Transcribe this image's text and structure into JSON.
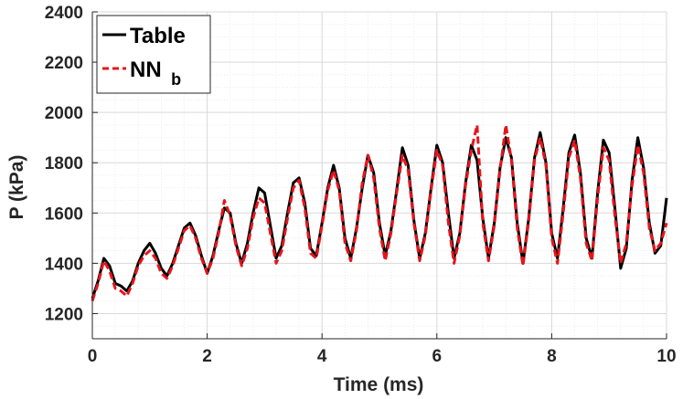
{
  "chart_data": {
    "type": "line",
    "title": "",
    "xlabel": "Time (ms)",
    "ylabel": "P (kPa)",
    "xlim": [
      0,
      10
    ],
    "ylim": [
      1100,
      2400
    ],
    "xticks": [
      0,
      2,
      4,
      6,
      8,
      10
    ],
    "yticks": [
      1200,
      1400,
      1600,
      1800,
      2000,
      2200,
      2400
    ],
    "xtick_labels": [
      "0",
      "2",
      "4",
      "6",
      "8",
      "10"
    ],
    "ytick_labels": [
      "1200",
      "1400",
      "1600",
      "1800",
      "2000",
      "2200",
      "2400"
    ],
    "grid": true,
    "minor_grid": true,
    "legend_position": "top-left",
    "legend": [
      {
        "name": "Table",
        "color": "#000000",
        "style": "solid"
      },
      {
        "name": "NN",
        "subscript": "b",
        "color": "#e8141c",
        "style": "dashed"
      }
    ],
    "series": [
      {
        "name": "Table",
        "color": "#000000",
        "x": [
          0.0,
          0.1,
          0.2,
          0.3,
          0.4,
          0.5,
          0.6,
          0.7,
          0.8,
          0.9,
          1.0,
          1.1,
          1.2,
          1.3,
          1.4,
          1.5,
          1.6,
          1.7,
          1.8,
          1.9,
          2.0,
          2.1,
          2.2,
          2.3,
          2.4,
          2.5,
          2.6,
          2.7,
          2.8,
          2.9,
          3.0,
          3.1,
          3.2,
          3.3,
          3.4,
          3.5,
          3.6,
          3.7,
          3.8,
          3.9,
          4.0,
          4.1,
          4.2,
          4.3,
          4.4,
          4.5,
          4.6,
          4.7,
          4.8,
          4.9,
          5.0,
          5.1,
          5.2,
          5.3,
          5.4,
          5.5,
          5.6,
          5.7,
          5.8,
          5.9,
          6.0,
          6.1,
          6.2,
          6.3,
          6.4,
          6.5,
          6.6,
          6.7,
          6.8,
          6.9,
          7.0,
          7.1,
          7.2,
          7.3,
          7.4,
          7.5,
          7.6,
          7.7,
          7.8,
          7.9,
          8.0,
          8.1,
          8.2,
          8.3,
          8.4,
          8.5,
          8.6,
          8.7,
          8.8,
          8.9,
          9.0,
          9.1,
          9.2,
          9.3,
          9.4,
          9.5,
          9.6,
          9.7,
          9.8,
          9.9,
          10.0
        ],
        "y": [
          1260,
          1330,
          1420,
          1390,
          1320,
          1310,
          1290,
          1330,
          1400,
          1450,
          1480,
          1440,
          1380,
          1350,
          1400,
          1470,
          1540,
          1560,
          1510,
          1430,
          1360,
          1430,
          1530,
          1620,
          1600,
          1480,
          1400,
          1480,
          1600,
          1700,
          1680,
          1550,
          1420,
          1470,
          1600,
          1720,
          1740,
          1640,
          1460,
          1430,
          1560,
          1700,
          1790,
          1700,
          1500,
          1420,
          1540,
          1700,
          1830,
          1760,
          1560,
          1430,
          1530,
          1690,
          1860,
          1790,
          1570,
          1420,
          1520,
          1700,
          1870,
          1800,
          1600,
          1420,
          1520,
          1720,
          1870,
          1810,
          1580,
          1420,
          1560,
          1780,
          1900,
          1820,
          1560,
          1400,
          1580,
          1820,
          1920,
          1800,
          1520,
          1420,
          1620,
          1840,
          1910,
          1760,
          1500,
          1420,
          1680,
          1890,
          1840,
          1620,
          1380,
          1460,
          1730,
          1900,
          1780,
          1560,
          1440,
          1470,
          1660
        ]
      },
      {
        "name": "NN b",
        "color": "#e8141c",
        "x": [
          0.0,
          0.1,
          0.2,
          0.3,
          0.4,
          0.5,
          0.6,
          0.7,
          0.8,
          0.9,
          1.0,
          1.1,
          1.2,
          1.3,
          1.4,
          1.5,
          1.6,
          1.7,
          1.8,
          1.9,
          2.0,
          2.1,
          2.2,
          2.3,
          2.4,
          2.5,
          2.6,
          2.7,
          2.8,
          2.9,
          3.0,
          3.1,
          3.2,
          3.3,
          3.4,
          3.5,
          3.6,
          3.7,
          3.8,
          3.9,
          4.0,
          4.1,
          4.2,
          4.3,
          4.4,
          4.5,
          4.6,
          4.7,
          4.8,
          4.9,
          5.0,
          5.1,
          5.2,
          5.3,
          5.4,
          5.5,
          5.6,
          5.7,
          5.8,
          5.9,
          6.0,
          6.1,
          6.2,
          6.3,
          6.4,
          6.5,
          6.6,
          6.7,
          6.8,
          6.9,
          7.0,
          7.1,
          7.2,
          7.3,
          7.4,
          7.5,
          7.6,
          7.7,
          7.8,
          7.9,
          8.0,
          8.1,
          8.2,
          8.3,
          8.4,
          8.5,
          8.6,
          8.7,
          8.8,
          8.9,
          9.0,
          9.1,
          9.2,
          9.3,
          9.4,
          9.5,
          9.6,
          9.7,
          9.8,
          9.9,
          10.0
        ],
        "y": [
          1250,
          1320,
          1410,
          1370,
          1300,
          1290,
          1270,
          1320,
          1390,
          1430,
          1450,
          1420,
          1360,
          1340,
          1390,
          1460,
          1530,
          1550,
          1500,
          1420,
          1360,
          1420,
          1520,
          1650,
          1590,
          1470,
          1390,
          1460,
          1580,
          1660,
          1640,
          1520,
          1400,
          1450,
          1580,
          1700,
          1730,
          1620,
          1440,
          1420,
          1550,
          1690,
          1770,
          1690,
          1480,
          1410,
          1530,
          1720,
          1830,
          1740,
          1540,
          1410,
          1520,
          1680,
          1830,
          1770,
          1560,
          1410,
          1510,
          1690,
          1850,
          1790,
          1560,
          1400,
          1510,
          1710,
          1850,
          1950,
          1560,
          1410,
          1550,
          1770,
          1950,
          1810,
          1540,
          1390,
          1570,
          1810,
          1900,
          1790,
          1500,
          1400,
          1600,
          1820,
          1890,
          1740,
          1480,
          1410,
          1660,
          1860,
          1810,
          1590,
          1400,
          1480,
          1710,
          1870,
          1760,
          1540,
          1450,
          1480,
          1560
        ]
      }
    ]
  }
}
